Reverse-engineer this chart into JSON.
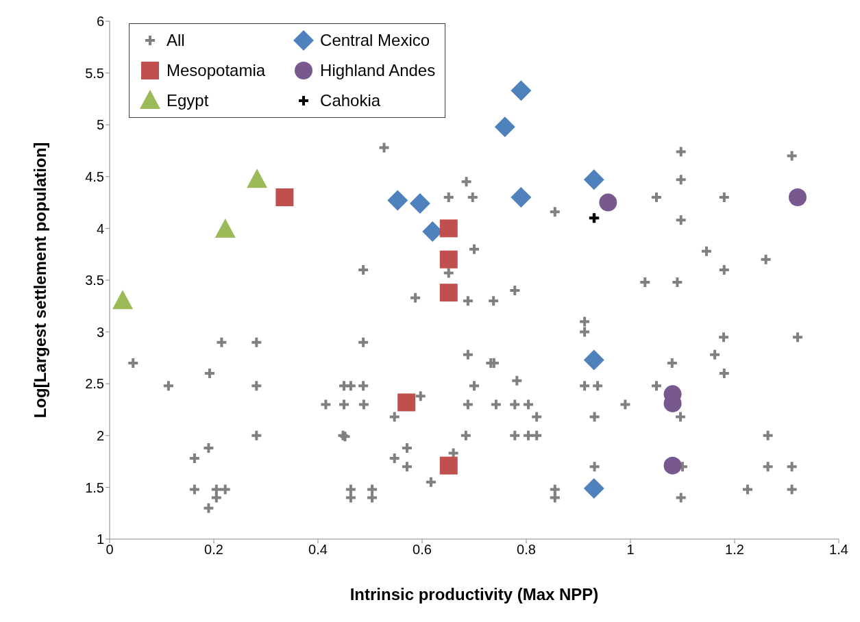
{
  "chart_data": {
    "type": "scatter",
    "xlabel": "Intrinsic productivity (Max NPP)",
    "ylabel": "Log[Largest settlement population]",
    "xlim": [
      0,
      1.4
    ],
    "xticks": [
      0,
      0.2,
      0.4,
      0.6,
      0.8,
      1,
      1.2,
      1.4
    ],
    "ylim": [
      1,
      6
    ],
    "yticks": [
      1,
      1.5,
      2,
      2.5,
      3,
      3.5,
      4,
      4.5,
      5,
      5.5,
      6
    ],
    "grid": false,
    "legend": "top left",
    "series": [
      {
        "name": "All",
        "color": "#808080",
        "marker": "cross",
        "x": [
          0.215,
          0.282,
          0.487,
          0.045,
          0.192,
          0.113,
          0.282,
          0.45,
          0.463,
          0.487,
          0.415,
          0.45,
          0.488,
          0.282,
          0.448,
          0.452,
          0.19,
          0.163,
          0.163,
          0.205,
          0.222,
          0.205,
          0.19,
          0.463,
          0.463,
          0.504,
          0.504,
          0.487,
          0.527,
          0.685,
          0.651,
          0.697,
          0.855,
          0.931,
          0.7,
          0.651,
          0.587,
          0.688,
          0.737,
          0.778,
          0.912,
          0.912,
          0.688,
          0.732,
          0.738,
          0.782,
          0.7,
          0.912,
          0.937,
          0.597,
          0.688,
          0.742,
          0.778,
          0.804,
          0.547,
          0.82,
          0.931,
          0.684,
          0.778,
          0.804,
          0.82,
          0.571,
          0.547,
          0.571,
          0.66,
          0.617,
          0.931,
          0.855,
          0.855,
          1.097,
          1.31,
          1.097,
          1.05,
          1.18,
          1.097,
          1.146,
          1.26,
          1.18,
          1.028,
          1.09,
          1.179,
          1.321,
          1.162,
          1.08,
          1.18,
          1.05,
          0.99,
          1.096,
          1.264,
          1.1,
          1.264,
          1.31,
          1.225,
          1.31,
          1.097
        ],
        "values": [
          2.9,
          2.9,
          2.9,
          2.7,
          2.6,
          2.48,
          2.48,
          2.48,
          2.48,
          2.48,
          2.3,
          2.3,
          2.3,
          2,
          2,
          1.99,
          1.88,
          1.78,
          1.48,
          1.48,
          1.48,
          1.4,
          1.3,
          1.48,
          1.4,
          1.48,
          1.4,
          3.6,
          4.78,
          4.45,
          4.3,
          4.3,
          4.16,
          4.1,
          3.8,
          3.57,
          3.33,
          3.3,
          3.3,
          3.4,
          3.1,
          3,
          2.78,
          2.7,
          2.7,
          2.53,
          2.48,
          2.48,
          2.48,
          2.38,
          2.3,
          2.3,
          2.3,
          2.3,
          2.18,
          2.18,
          2.18,
          2,
          2,
          2,
          2,
          1.88,
          1.78,
          1.7,
          1.83,
          1.55,
          1.7,
          1.48,
          1.4,
          4.74,
          4.7,
          4.47,
          4.3,
          4.3,
          4.08,
          3.78,
          3.7,
          3.6,
          3.48,
          3.48,
          2.95,
          2.95,
          2.78,
          2.7,
          2.6,
          2.48,
          2.3,
          2.18,
          2,
          1.7,
          1.7,
          1.7,
          1.48,
          1.48,
          1.4
        ]
      },
      {
        "name": "Central Mexico",
        "color": "#4f81bd",
        "marker": "diamond",
        "x": [
          0.553,
          0.596,
          0.62,
          0.759,
          0.79,
          0.79,
          0.93,
          0.93,
          0.93
        ],
        "values": [
          4.27,
          4.24,
          3.97,
          4.98,
          5.33,
          4.3,
          4.47,
          2.73,
          1.49
        ]
      },
      {
        "name": "Mesopotamia",
        "color": "#c0504d",
        "marker": "square",
        "x": [
          0.336,
          0.651,
          0.651,
          0.651,
          0.57,
          0.651
        ],
        "values": [
          4.3,
          4.0,
          3.7,
          3.38,
          2.32,
          1.71
        ]
      },
      {
        "name": "Highland Andes",
        "color": "#77598f",
        "marker": "circle",
        "x": [
          0.957,
          1.321,
          1.081,
          1.081,
          1.081
        ],
        "values": [
          4.25,
          4.3,
          2.4,
          2.31,
          1.71
        ]
      },
      {
        "name": "Egypt",
        "color": "#9bbb59",
        "marker": "triangle",
        "x": [
          0.283,
          0.222,
          0.025
        ],
        "values": [
          4.47,
          3.99,
          3.3
        ]
      },
      {
        "name": "Cahokia",
        "color": "#000000",
        "marker": "cross",
        "x": [
          0.93
        ],
        "values": [
          4.1
        ]
      }
    ]
  }
}
